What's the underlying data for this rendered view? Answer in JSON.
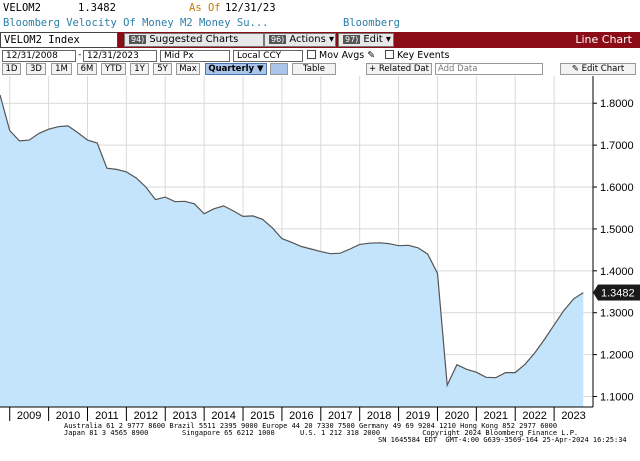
{
  "header": {
    "ticker_short": "VELOM2",
    "last_value": "1.3482",
    "as_of_label": "As Of",
    "as_of_date": "12/31/23",
    "description": "Bloomberg Velocity Of Money M2 Money Su...",
    "source": "Bloomberg"
  },
  "toolbar": {
    "security": "VELOM2 Index",
    "suggested_num": "94)",
    "suggested": "Suggested Charts",
    "actions_num": "96)",
    "actions": "Actions ▾",
    "edit_num": "97)",
    "edit": "Edit ▾",
    "chart_type": "Line Chart"
  },
  "controls": {
    "start_date": "12/31/2008",
    "end_date": "12/31/2023",
    "field": "Mid Px",
    "currency": "Local CCY",
    "mov_avgs": "Mov Avgs",
    "key_events": "Key Events"
  },
  "period_buttons": [
    {
      "label": "1D"
    },
    {
      "label": "3D"
    },
    {
      "label": "1M"
    },
    {
      "label": "6M"
    },
    {
      "label": "YTD"
    },
    {
      "label": "1Y"
    },
    {
      "label": "5Y"
    },
    {
      "label": "Max"
    },
    {
      "label": "Quarterly ▼"
    }
  ],
  "tools": {
    "table": "Table",
    "related": "Related Dat",
    "add_data": "Add Data",
    "edit_chart": "Edit Chart"
  },
  "chart_data": {
    "type": "area",
    "title": "",
    "xlabel": "",
    "ylabel": "",
    "x_ticks": [
      "2009",
      "2010",
      "2011",
      "2012",
      "2013",
      "2014",
      "2015",
      "2016",
      "2017",
      "2018",
      "2019",
      "2020",
      "2021",
      "2022",
      "2023"
    ],
    "y_ticks": [
      "1.8000",
      "1.7000",
      "1.6000",
      "1.5000",
      "1.4000",
      "1.3000",
      "1.2000",
      "1.1000"
    ],
    "ylim": [
      1.075,
      1.865
    ],
    "xlim": [
      2008.75,
      2024.0
    ],
    "grid": true,
    "last_value_label": "1.3482",
    "colors": {
      "fill": "#c4e4fb",
      "line": "#555555",
      "label_bg": "#1a1a1a"
    },
    "series": [
      {
        "x": [
          2008.75,
          2009.0,
          2009.25,
          2009.5,
          2009.75,
          2010.0,
          2010.25,
          2010.5,
          2010.75,
          2011.0,
          2011.25,
          2011.5,
          2011.75,
          2012.0,
          2012.25,
          2012.5,
          2012.75,
          2013.0,
          2013.25,
          2013.5,
          2013.75,
          2014.0,
          2014.25,
          2014.5,
          2014.75,
          2015.0,
          2015.25,
          2015.5,
          2015.75,
          2016.0,
          2016.25,
          2016.5,
          2016.75,
          2017.0,
          2017.25,
          2017.5,
          2017.75,
          2018.0,
          2018.25,
          2018.5,
          2018.75,
          2019.0,
          2019.25,
          2019.5,
          2019.75,
          2020.0,
          2020.25,
          2020.5,
          2020.75,
          2021.0,
          2021.25,
          2021.5,
          2021.75,
          2022.0,
          2022.25,
          2022.5,
          2022.75,
          2023.0,
          2023.25,
          2023.5,
          2023.75
        ],
        "values": [
          1.82,
          1.735,
          1.71,
          1.712,
          1.728,
          1.738,
          1.744,
          1.746,
          1.73,
          1.712,
          1.705,
          1.645,
          1.642,
          1.636,
          1.622,
          1.6,
          1.57,
          1.576,
          1.565,
          1.566,
          1.56,
          1.536,
          1.548,
          1.555,
          1.543,
          1.53,
          1.531,
          1.523,
          1.503,
          1.477,
          1.468,
          1.458,
          1.452,
          1.446,
          1.441,
          1.442,
          1.452,
          1.463,
          1.466,
          1.467,
          1.465,
          1.46,
          1.461,
          1.455,
          1.44,
          1.394,
          1.127,
          1.176,
          1.165,
          1.158,
          1.146,
          1.145,
          1.157,
          1.157,
          1.177,
          1.204,
          1.236,
          1.271,
          1.305,
          1.333,
          1.348
        ]
      }
    ]
  },
  "footer": {
    "line1": "Australia 61 2 9777 8600 Brazil 5511 2395 9000 Europe 44 20 7330 7500 Germany 49 69 9204 1210 Hong Kong 852 2977 6000",
    "line2": "Japan 81 3 4565 8900        Singapore 65 6212 1000      U.S. 1 212 318 2000          Copyright 2024 Bloomberg Finance L.P.",
    "line3": "SN 1645584 EDT  GMT-4:00 G639-3569-164 25-Apr-2024 16:25:34"
  }
}
